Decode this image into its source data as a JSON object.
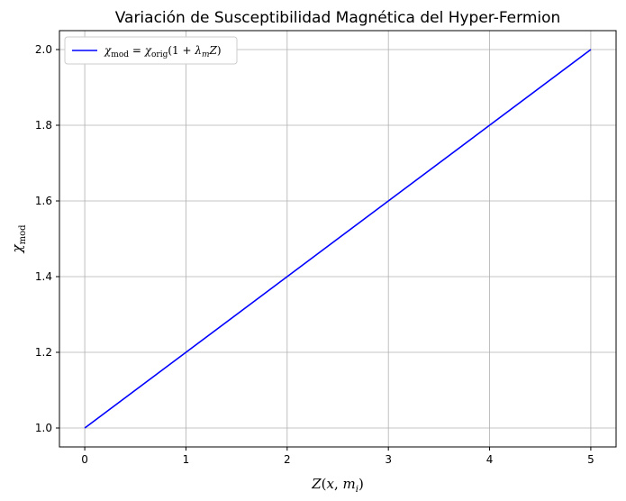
{
  "chart_data": {
    "type": "line",
    "title": "Variación de Susceptibilidad Magnética del Hyper-Fermion",
    "xlabel": "Z(x, m_i)",
    "ylabel": "χ_mod",
    "xlim": [
      -0.25,
      5.25
    ],
    "ylim": [
      0.95,
      2.05
    ],
    "x_ticks": [
      0,
      1,
      2,
      3,
      4,
      5
    ],
    "y_ticks": [
      1.0,
      1.2,
      1.4,
      1.6,
      1.8,
      2.0
    ],
    "x_tick_labels": [
      "0",
      "1",
      "2",
      "3",
      "4",
      "5"
    ],
    "y_tick_labels": [
      "1.0",
      "1.2",
      "1.4",
      "1.6",
      "1.8",
      "2.0"
    ],
    "grid": true,
    "legend_position": "top-left",
    "series": [
      {
        "name": "χ_mod = χ_orig(1 + λ_m Z)",
        "color": "#0000ff",
        "x": [
          0,
          1,
          2,
          3,
          4,
          5
        ],
        "y": [
          1.0,
          1.2,
          1.4,
          1.6,
          1.8,
          2.0
        ]
      }
    ]
  }
}
